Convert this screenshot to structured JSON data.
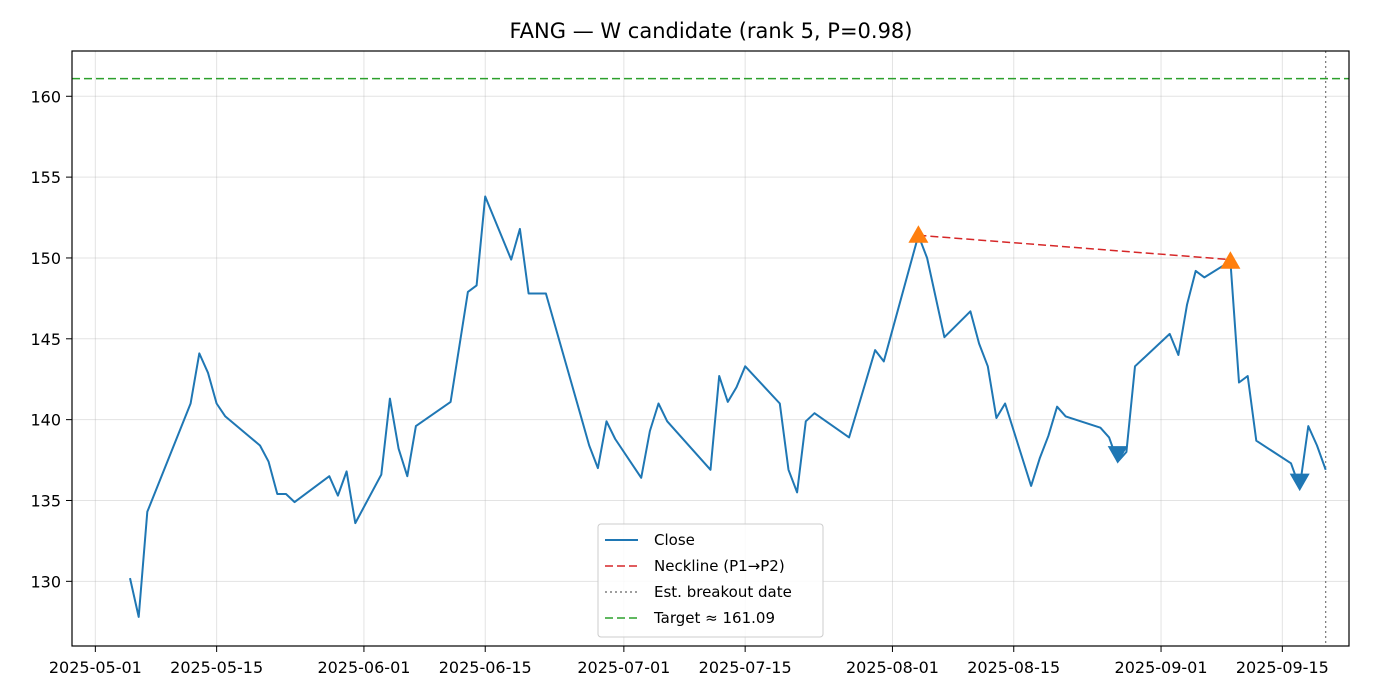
{
  "chart_data": {
    "type": "line",
    "title": "FANG — W candidate (rank 5, P=0.98)",
    "xlabel": "",
    "ylabel": "",
    "grid": true,
    "legend_position": "bottom-center",
    "xlim": [
      "2025-05-05",
      "2025-09-16"
    ],
    "ylim": [
      126.0,
      162.8
    ],
    "x_ticks": [
      "2025-05-01",
      "2025-05-15",
      "2025-06-01",
      "2025-06-15",
      "2025-07-01",
      "2025-07-15",
      "2025-08-01",
      "2025-08-15",
      "2025-09-01",
      "2025-09-15"
    ],
    "y_ticks": [
      130,
      135,
      140,
      145,
      150,
      155,
      160
    ],
    "series": [
      {
        "name": "Close",
        "color": "#1f77b4",
        "style": "solid",
        "points": [
          [
            "2025-05-05",
            130.2
          ],
          [
            "2025-05-06",
            127.8
          ],
          [
            "2025-05-07",
            134.3
          ],
          [
            "2025-05-12",
            141.0
          ],
          [
            "2025-05-13",
            144.1
          ],
          [
            "2025-05-14",
            142.9
          ],
          [
            "2025-05-15",
            141.0
          ],
          [
            "2025-05-16",
            140.2
          ],
          [
            "2025-05-20",
            138.4
          ],
          [
            "2025-05-21",
            137.4
          ],
          [
            "2025-05-22",
            135.4
          ],
          [
            "2025-05-23",
            135.4
          ],
          [
            "2025-05-24",
            134.9
          ],
          [
            "2025-05-28",
            136.5
          ],
          [
            "2025-05-29",
            135.3
          ],
          [
            "2025-05-30",
            136.8
          ],
          [
            "2025-05-31",
            133.6
          ],
          [
            "2025-06-03",
            136.6
          ],
          [
            "2025-06-04",
            141.3
          ],
          [
            "2025-06-05",
            138.2
          ],
          [
            "2025-06-06",
            136.5
          ],
          [
            "2025-06-07",
            139.6
          ],
          [
            "2025-06-11",
            141.1
          ],
          [
            "2025-06-13",
            147.9
          ],
          [
            "2025-06-14",
            148.3
          ],
          [
            "2025-06-15",
            153.8
          ],
          [
            "2025-06-18",
            149.9
          ],
          [
            "2025-06-19",
            151.8
          ],
          [
            "2025-06-20",
            147.8
          ],
          [
            "2025-06-22",
            147.8
          ],
          [
            "2025-06-26",
            140.3
          ],
          [
            "2025-06-27",
            138.4
          ],
          [
            "2025-06-28",
            137.0
          ],
          [
            "2025-06-29",
            139.9
          ],
          [
            "2025-06-30",
            138.8
          ],
          [
            "2025-07-03",
            136.4
          ],
          [
            "2025-07-04",
            139.3
          ],
          [
            "2025-07-05",
            141.0
          ],
          [
            "2025-07-06",
            139.9
          ],
          [
            "2025-07-11",
            136.9
          ],
          [
            "2025-07-12",
            142.7
          ],
          [
            "2025-07-13",
            141.1
          ],
          [
            "2025-07-14",
            142.0
          ],
          [
            "2025-07-15",
            143.3
          ],
          [
            "2025-07-19",
            141.0
          ],
          [
            "2025-07-20",
            136.9
          ],
          [
            "2025-07-21",
            135.5
          ],
          [
            "2025-07-22",
            139.9
          ],
          [
            "2025-07-23",
            140.4
          ],
          [
            "2025-07-27",
            138.9
          ],
          [
            "2025-07-29",
            142.5
          ],
          [
            "2025-07-30",
            144.3
          ],
          [
            "2025-07-31",
            143.6
          ],
          [
            "2025-08-04",
            151.4
          ],
          [
            "2025-08-05",
            150.0
          ],
          [
            "2025-08-07",
            145.1
          ],
          [
            "2025-08-10",
            146.7
          ],
          [
            "2025-08-11",
            144.7
          ],
          [
            "2025-08-12",
            143.3
          ],
          [
            "2025-08-13",
            140.1
          ],
          [
            "2025-08-14",
            141.0
          ],
          [
            "2025-08-17",
            135.9
          ],
          [
            "2025-08-18",
            137.6
          ],
          [
            "2025-08-19",
            139.0
          ],
          [
            "2025-08-20",
            140.8
          ],
          [
            "2025-08-21",
            140.2
          ],
          [
            "2025-08-25",
            139.5
          ],
          [
            "2025-08-26",
            138.9
          ],
          [
            "2025-08-27",
            137.4
          ],
          [
            "2025-08-28",
            138.0
          ],
          [
            "2025-08-29",
            143.3
          ],
          [
            "2025-09-02",
            145.3
          ],
          [
            "2025-09-03",
            144.0
          ],
          [
            "2025-09-04",
            147.1
          ],
          [
            "2025-09-05",
            149.2
          ],
          [
            "2025-09-06",
            148.8
          ],
          [
            "2025-09-09",
            149.8
          ],
          [
            "2025-09-10",
            142.3
          ],
          [
            "2025-09-11",
            142.7
          ],
          [
            "2025-09-12",
            138.7
          ],
          [
            "2025-09-16",
            137.3
          ],
          [
            "2025-09-17",
            135.8
          ],
          [
            "2025-09-18",
            139.6
          ],
          [
            "2025-09-19",
            138.4
          ],
          [
            "2025-09-20",
            136.9
          ]
        ]
      },
      {
        "name": "Neckline (P1→P2)",
        "color": "#d62728",
        "style": "dashed",
        "points": [
          [
            "2025-08-04",
            151.4
          ],
          [
            "2025-09-09",
            149.9
          ]
        ]
      }
    ],
    "vertical_lines": [
      {
        "name": "Est. breakout date",
        "color": "#7f7f7f",
        "style": "dotted",
        "x": "2025-09-20"
      }
    ],
    "horizontal_lines": [
      {
        "name": "Target ≈ 161.09",
        "color": "#2ca02c",
        "style": "dashed",
        "y": 161.09
      }
    ],
    "markers": [
      {
        "shape": "triangle-up",
        "color": "#ff7f0e",
        "x": "2025-08-04",
        "y": 151.4
      },
      {
        "shape": "triangle-up",
        "color": "#ff7f0e",
        "x": "2025-09-09",
        "y": 149.8
      },
      {
        "shape": "triangle-down",
        "color": "#1f77b4",
        "x": "2025-08-27",
        "y": 137.9
      },
      {
        "shape": "triangle-down",
        "color": "#1f77b4",
        "x": "2025-09-17",
        "y": 136.2
      }
    ],
    "legend": [
      "Close",
      "Neckline (P1→P2)",
      "Est. breakout date",
      "Target ≈ 161.09"
    ]
  }
}
